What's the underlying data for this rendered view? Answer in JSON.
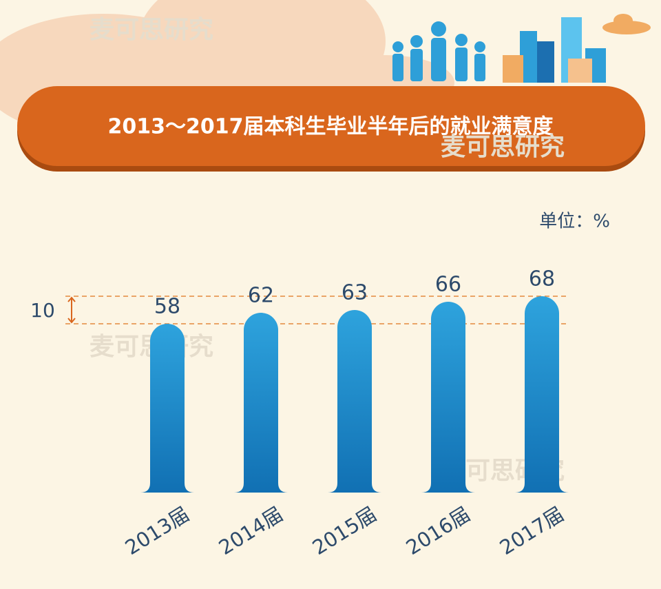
{
  "chart_data": {
    "type": "bar",
    "title": "2013～2017届本科生毕业半年后的就业满意度",
    "unit_label": "单位：%",
    "watermark": "麦可思研究",
    "categories": [
      "2013届",
      "2014届",
      "2015届",
      "2016届",
      "2017届"
    ],
    "values": [
      58,
      62,
      63,
      66,
      68
    ],
    "scale_bar": 10,
    "color": "#1e86c8"
  }
}
